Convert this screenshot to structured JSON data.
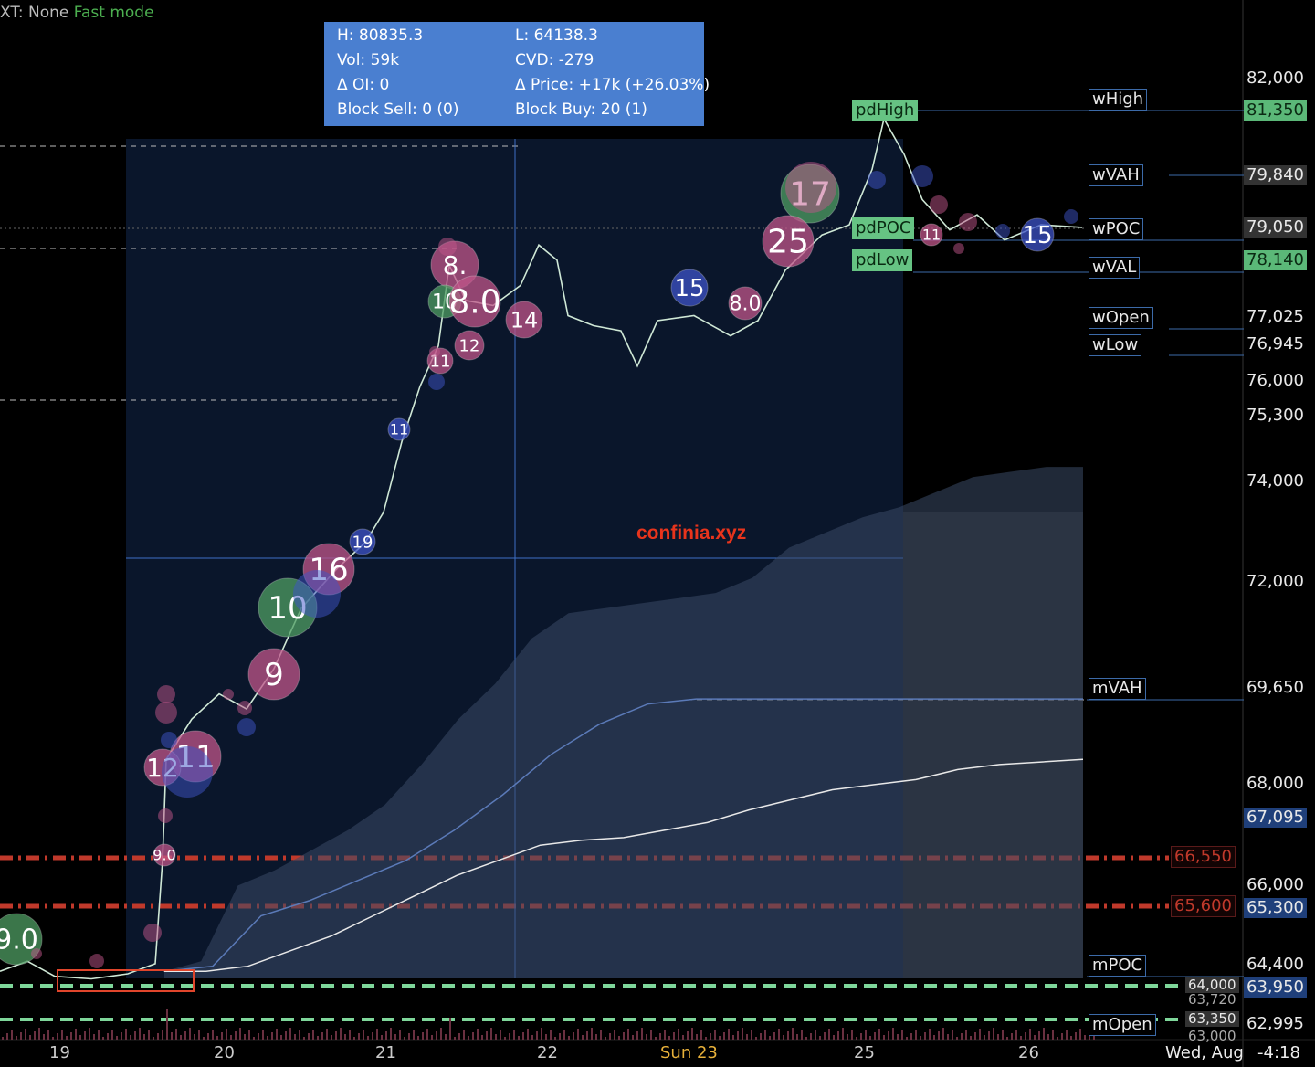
{
  "topbar": {
    "prefix": "XT: None",
    "mode": "Fast mode"
  },
  "info_box": {
    "high": "H: 80835.3",
    "low": "L: 64138.3",
    "vol": "Vol: 59k",
    "cvd": "CVD: -279",
    "doi": "Δ OI: 0",
    "dprice": "Δ Price: +17k (+26.03%)",
    "block_sell": "Block Sell: 0 (0)",
    "block_buy": "Block Buy: 20 (1)"
  },
  "watermark": "confinia.xyz",
  "level_labels": {
    "wHigh": "wHigh",
    "wVAH": "wVAH",
    "wPOC": "wPOC",
    "wVAL": "wVAL",
    "wOpen": "wOpen",
    "wLow": "wLow",
    "mVAH": "mVAH",
    "mPOC": "mPOC",
    "mOpen": "mOpen",
    "pdHigh": "pdHigh",
    "pdPOC": "pdPOC",
    "pdLow": "pdLow"
  },
  "price_tags": {
    "p82000": "82,000",
    "p81350": "81,350",
    "p79840": "79,840",
    "p79050": "79,050",
    "p78140": "78,140",
    "p77025": "77,025",
    "p76945": "76,945",
    "p76000": "76,000",
    "p75300": "75,300",
    "p74000": "74,000",
    "p72000": "72,000",
    "p69650": "69,650",
    "p68000": "68,000",
    "p67095": "67,095",
    "p66550": "66,550",
    "p66000": "66,000",
    "p65600": "65,600",
    "p65300": "65,300",
    "p64400": "64,400",
    "p64000": "64,000",
    "p63950": "63,950",
    "p63720": "63,720",
    "p63350": "63,350",
    "p62995": "62,995",
    "p63000": "63,000"
  },
  "x_axis": {
    "d19": "19",
    "d20": "20",
    "d21": "21",
    "d22": "22",
    "d23": "Sun 23",
    "d25": "25",
    "d26": "26",
    "right": "Wed, Aug",
    "timer": "-4:18"
  },
  "colors": {
    "accent_blue": "#4a7fd0",
    "green_level": "#66c383",
    "red_level": "#c0392b",
    "bubble_pink": "#c0558a",
    "bubble_blue": "#3d53c8",
    "bubble_green": "#4f9e63"
  },
  "chart_data": {
    "type": "line",
    "bubble_labels": [
      "9.0",
      "8.",
      "10",
      "8.0",
      "14",
      "12",
      "11",
      "11",
      "19",
      "16",
      "10",
      "9",
      "11",
      "12",
      "9.0",
      "15",
      "8.0",
      "17",
      "25",
      "11",
      "15"
    ],
    "ylim": [
      62995,
      82600
    ],
    "price_series": [
      {
        "x": 0,
        "y": 64300
      },
      {
        "x": 30,
        "y": 64500
      },
      {
        "x": 60,
        "y": 64200
      },
      {
        "x": 100,
        "y": 64150
      },
      {
        "x": 140,
        "y": 64250
      },
      {
        "x": 170,
        "y": 64450
      },
      {
        "x": 178,
        "y": 66500
      },
      {
        "x": 182,
        "y": 68500
      },
      {
        "x": 210,
        "y": 69300
      },
      {
        "x": 240,
        "y": 69800
      },
      {
        "x": 270,
        "y": 69500
      },
      {
        "x": 300,
        "y": 70300
      },
      {
        "x": 330,
        "y": 71500
      },
      {
        "x": 370,
        "y": 72300
      },
      {
        "x": 400,
        "y": 72800
      },
      {
        "x": 420,
        "y": 73400
      },
      {
        "x": 440,
        "y": 74800
      },
      {
        "x": 460,
        "y": 75900
      },
      {
        "x": 480,
        "y": 76700
      },
      {
        "x": 492,
        "y": 78300
      },
      {
        "x": 510,
        "y": 77600
      },
      {
        "x": 540,
        "y": 77500
      },
      {
        "x": 570,
        "y": 77900
      },
      {
        "x": 590,
        "y": 78700
      },
      {
        "x": 610,
        "y": 78400
      },
      {
        "x": 622,
        "y": 77300
      },
      {
        "x": 650,
        "y": 77100
      },
      {
        "x": 680,
        "y": 77000
      },
      {
        "x": 698,
        "y": 76300
      },
      {
        "x": 720,
        "y": 77200
      },
      {
        "x": 760,
        "y": 77300
      },
      {
        "x": 800,
        "y": 76900
      },
      {
        "x": 830,
        "y": 77200
      },
      {
        "x": 860,
        "y": 78200
      },
      {
        "x": 900,
        "y": 78900
      },
      {
        "x": 930,
        "y": 79100
      },
      {
        "x": 955,
        "y": 80200
      },
      {
        "x": 968,
        "y": 81200
      },
      {
        "x": 990,
        "y": 80500
      },
      {
        "x": 1010,
        "y": 79600
      },
      {
        "x": 1040,
        "y": 79000
      },
      {
        "x": 1070,
        "y": 79300
      },
      {
        "x": 1100,
        "y": 78800
      },
      {
        "x": 1140,
        "y": 79100
      },
      {
        "x": 1185,
        "y": 79050
      }
    ],
    "cvd_upper": [
      64300,
      64500,
      66000,
      66300,
      66700,
      67100,
      67600,
      68400,
      69300,
      70000,
      70900,
      71400,
      71500,
      71600,
      71700,
      71800,
      72100,
      72700,
      73000,
      73300,
      73500,
      73800,
      74100,
      74200,
      74300,
      74300
    ],
    "cvd_mid": [
      64300,
      64400,
      65400,
      65700,
      66100,
      66500,
      67100,
      67800,
      68600,
      69200,
      69600,
      69700,
      69700,
      69700,
      69700,
      69700,
      69700,
      69700,
      69700,
      69700
    ],
    "cvd_lower": [
      64300,
      64300,
      64400,
      64700,
      65000,
      65400,
      65800,
      66200,
      66500,
      66800,
      66900,
      66950,
      67100,
      67250,
      67500,
      67700,
      67900,
      68000,
      68100,
      68300,
      68400,
      68450,
      68500
    ]
  }
}
